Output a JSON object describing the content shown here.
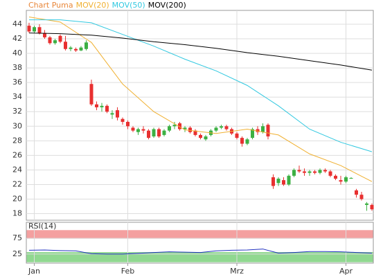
{
  "chart_data": [
    {
      "type": "candlestick",
      "categories": [
        null,
        "Jan",
        null,
        null,
        null,
        null,
        null,
        null,
        null,
        null,
        null,
        null,
        null,
        null,
        null,
        null,
        null,
        null,
        null,
        "Feb",
        null,
        null,
        null,
        null,
        null,
        null,
        null,
        null,
        null,
        null,
        null,
        null,
        null,
        null,
        null,
        null,
        null,
        null,
        null,
        null,
        "Mrz",
        null,
        null,
        null,
        null,
        null,
        null,
        null,
        null,
        null,
        null,
        null,
        null,
        null,
        null,
        null,
        null,
        null,
        null,
        null,
        null,
        "Apr",
        null,
        null,
        null,
        null,
        null
      ],
      "ylim": [
        17.1,
        45.9
      ],
      "yticks": [
        18,
        20,
        22,
        24,
        26,
        28,
        30,
        32,
        34,
        36,
        38,
        40,
        42,
        44
      ],
      "grid": true,
      "up_color": "#3cb043",
      "down_color": "#e83030",
      "series": [
        {
          "name": "Chart Puma",
          "color": "#e8873a",
          "open": [
            43.8,
            43.0,
            43.6,
            42.8,
            42.2,
            41.4,
            42.4,
            41.6,
            40.6,
            40.6,
            40.4,
            40.6,
            35.8,
            33.0,
            32.6,
            32.8,
            31.6,
            32.2,
            31.0,
            30.6,
            29.8,
            29.2,
            29.6,
            29.4,
            28.6,
            29.6,
            28.8,
            29.4,
            30.0,
            30.4,
            29.6,
            29.8,
            29.4,
            28.8,
            28.2,
            28.8,
            29.4,
            29.8,
            30.0,
            29.6,
            29.0,
            28.4,
            27.6,
            28.4,
            29.6,
            29.2,
            30.2,
            23.0,
            22.2,
            22.6,
            22.0,
            23.2,
            24.0,
            23.8,
            23.6,
            23.8,
            23.6,
            24.0,
            23.8,
            23.2,
            22.6,
            22.4,
            22.8,
            21.2,
            20.6,
            19.2,
            19.2
          ],
          "high": [
            44.2,
            43.8,
            44.0,
            43.2,
            42.4,
            42.0,
            42.6,
            42.4,
            41.0,
            40.8,
            41.0,
            41.8,
            36.4,
            33.4,
            33.2,
            33.0,
            32.2,
            32.6,
            31.2,
            30.8,
            30.0,
            29.8,
            30.0,
            29.6,
            29.8,
            29.8,
            29.6,
            30.2,
            30.6,
            30.6,
            30.0,
            30.0,
            29.6,
            29.0,
            28.8,
            29.6,
            30.0,
            30.2,
            30.2,
            29.8,
            29.2,
            28.6,
            28.4,
            29.8,
            30.0,
            30.4,
            30.4,
            23.4,
            23.0,
            23.0,
            23.4,
            24.2,
            24.6,
            24.2,
            24.0,
            24.0,
            24.2,
            24.2,
            24.0,
            23.4,
            23.2,
            23.2,
            23.0,
            21.4,
            21.0,
            19.6,
            19.4
          ],
          "low": [
            42.8,
            42.8,
            42.6,
            42.0,
            41.2,
            41.2,
            41.4,
            40.4,
            40.3,
            40.2,
            40.3,
            40.4,
            32.8,
            32.2,
            32.0,
            31.8,
            31.0,
            30.8,
            30.2,
            29.6,
            29.2,
            28.8,
            29.0,
            28.2,
            28.4,
            28.4,
            28.6,
            29.2,
            29.6,
            29.4,
            29.2,
            29.0,
            28.6,
            28.2,
            28.0,
            28.6,
            29.2,
            29.6,
            29.4,
            28.8,
            28.2,
            27.2,
            27.4,
            28.2,
            28.8,
            29.0,
            28.2,
            21.4,
            21.8,
            21.8,
            21.8,
            23.0,
            23.6,
            23.2,
            23.2,
            23.4,
            23.4,
            23.6,
            23.0,
            22.6,
            22.0,
            22.2,
            22.8,
            20.2,
            19.8,
            18.4,
            18.4
          ],
          "close": [
            43.0,
            43.6,
            42.8,
            42.2,
            41.4,
            41.8,
            41.6,
            40.6,
            40.8,
            40.4,
            40.8,
            41.5,
            33.0,
            32.6,
            32.8,
            32.0,
            31.8,
            31.2,
            30.6,
            30.0,
            29.4,
            29.6,
            29.4,
            28.4,
            29.6,
            28.6,
            29.4,
            30.0,
            30.2,
            29.6,
            29.8,
            29.2,
            28.8,
            28.4,
            28.6,
            29.4,
            29.8,
            30.0,
            29.6,
            29.0,
            28.4,
            27.6,
            28.2,
            29.6,
            29.2,
            30.0,
            28.6,
            21.8,
            22.8,
            22.0,
            23.2,
            24.0,
            23.8,
            23.6,
            23.8,
            23.6,
            24.0,
            23.8,
            23.2,
            22.8,
            22.4,
            23.0,
            22.9,
            20.6,
            20.0,
            19.4,
            18.6
          ]
        },
        {
          "name": "MOV(20)",
          "color": "#f0b030",
          "x": [
            0,
            6,
            12,
            18,
            24,
            30,
            36,
            42,
            48,
            54,
            60,
            66
          ],
          "values": [
            45.0,
            44.3,
            41.5,
            35.8,
            32.0,
            29.5,
            29.0,
            29.6,
            28.8,
            26.2,
            24.6,
            22.4
          ]
        },
        {
          "name": "MOV(50)",
          "color": "#30c8e0",
          "x": [
            0,
            6,
            12,
            18,
            24,
            30,
            36,
            42,
            48,
            54,
            60,
            66
          ],
          "values": [
            44.6,
            44.6,
            44.2,
            42.6,
            41.0,
            39.2,
            37.6,
            35.6,
            32.8,
            29.6,
            27.8,
            26.5
          ]
        },
        {
          "name": "MOV(200)",
          "color": "#000000",
          "x": [
            0,
            6,
            12,
            18,
            24,
            30,
            36,
            42,
            48,
            54,
            60,
            66
          ],
          "values": [
            42.8,
            42.7,
            42.5,
            42.1,
            41.6,
            41.2,
            40.7,
            40.1,
            39.6,
            39.0,
            38.4,
            37.7
          ]
        }
      ]
    },
    {
      "type": "line",
      "title": "RSI(14)",
      "ylim": [
        -4,
        126
      ],
      "yticks": [
        25,
        75
      ],
      "bands": [
        {
          "from": 75,
          "to": 100,
          "color": "#f4a0a0"
        },
        {
          "from": 0,
          "to": 30,
          "color": "#90d890"
        }
      ],
      "series": [
        {
          "color": "#2030c0",
          "x": [
            0,
            3,
            6,
            9,
            12,
            15,
            18,
            21,
            24,
            27,
            30,
            33,
            36,
            39,
            42,
            45,
            48,
            51,
            54,
            57,
            60,
            63,
            66
          ],
          "values": [
            37,
            38,
            36,
            35,
            26,
            25,
            25,
            27,
            30,
            32,
            31,
            30,
            35,
            37,
            38,
            41,
            28,
            30,
            33,
            33,
            32,
            30,
            28
          ]
        }
      ]
    }
  ]
}
